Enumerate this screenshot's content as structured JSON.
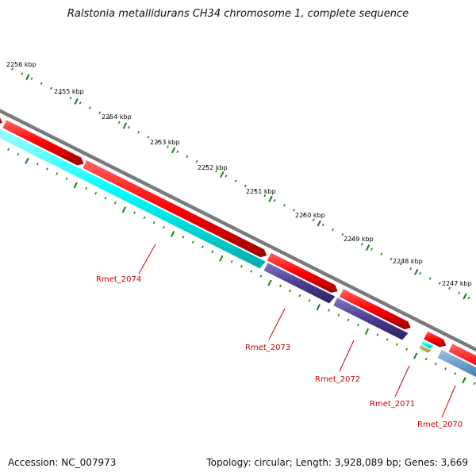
{
  "title": "Ralstonia metallidurans CH34 chromosome 1, complete sequence",
  "scale": {
    "unit": "kbp",
    "ticks": [
      "2256 kbp",
      "2255 kbp",
      "2254 kbp",
      "2253 kbp",
      "2252 kbp",
      "2251 kbp",
      "2250 kbp",
      "2249 kbp",
      "2248 kbp",
      "2247 kbp"
    ]
  },
  "genes": [
    {
      "name": "Rmet_2074",
      "color": "#00ffff"
    },
    {
      "name": "Rmet_2073",
      "color": "#4b3d8f"
    },
    {
      "name": "Rmet_2072",
      "color": "#4b3d8f"
    },
    {
      "name": "Rmet_2071",
      "color": "#00ffff"
    },
    {
      "name": "Rmet_2070",
      "color": "#4682b4"
    }
  ],
  "colors": {
    "cds": "#ff0000",
    "backbone": "#808080",
    "major_tick": "#006400",
    "minor_tick": "#006400",
    "label": "#cc0000"
  },
  "footer": {
    "accession": "Accession: NC_007973",
    "stats": "Topology: circular; Length: 3,928,089 bp; Genes: 3,669"
  }
}
